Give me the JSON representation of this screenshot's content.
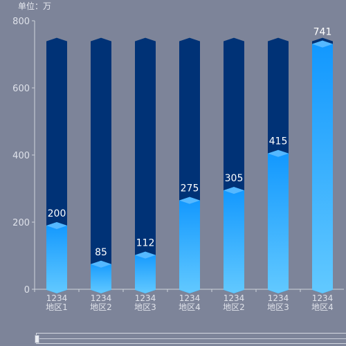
{
  "unit_label": "单位：万",
  "chart_data": {
    "type": "bar",
    "categories": [
      [
        "1234",
        "地区1"
      ],
      [
        "1234",
        "地区2"
      ],
      [
        "1234",
        "地区3"
      ],
      [
        "1234",
        "地区4"
      ],
      [
        "1234",
        "地区2"
      ],
      [
        "1234",
        "地区3"
      ],
      [
        "1234",
        "地区4"
      ]
    ],
    "values": [
      200,
      85,
      112,
      275,
      305,
      415,
      741
    ],
    "background_value": 741,
    "ylim": [
      0,
      800
    ],
    "yticks": [
      0,
      200,
      400,
      600,
      800
    ],
    "grid": false,
    "colors": {
      "background_bar": "#003276",
      "bar_top": "#1197fe",
      "bar_bottom": "#62c9ff",
      "cap": "#55b8ff",
      "axis": "#cfd3dc",
      "tick_text": "#dfe2ea",
      "label_text": "#ffffff"
    }
  }
}
